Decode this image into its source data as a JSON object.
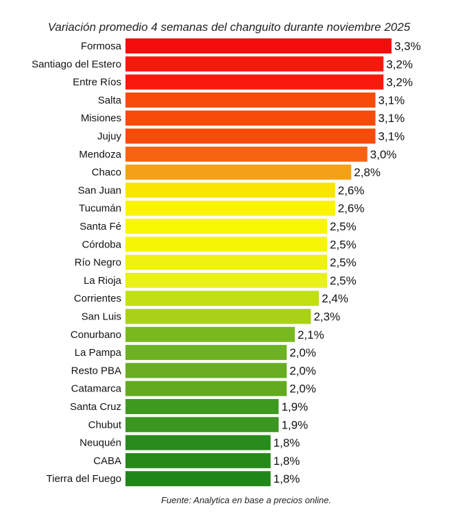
{
  "chart_data": {
    "type": "bar",
    "orientation": "horizontal",
    "title": "Variación promedio 4 semanas del changuito durante noviembre 2025",
    "source": "Fuente: Analytica en base a precios online.",
    "categories": [
      "Formosa",
      "Santiago del Estero",
      "Entre Ríos",
      "Salta",
      "Misiones",
      "Jujuy",
      "Mendoza",
      "Chaco",
      "San Juan",
      "Tucumán",
      "Santa Fé",
      "Córdoba",
      "Río Negro",
      "La Rioja",
      "Corrientes",
      "San Luis",
      "Conurbano",
      "La Pampa",
      "Resto PBA",
      "Catamarca",
      "Santa Cruz",
      "Chubut",
      "Neuquén",
      "CABA",
      "Tierra del Fuego"
    ],
    "values": [
      3.3,
      3.2,
      3.2,
      3.1,
      3.1,
      3.1,
      3.0,
      2.8,
      2.6,
      2.6,
      2.5,
      2.5,
      2.5,
      2.5,
      2.4,
      2.3,
      2.1,
      2.0,
      2.0,
      2.0,
      1.9,
      1.9,
      1.8,
      1.8,
      1.8
    ],
    "value_labels": [
      "3,3%",
      "3,2%",
      "3,2%",
      "3,1%",
      "3,1%",
      "3,1%",
      "3,0%",
      "2,8%",
      "2,6%",
      "2,6%",
      "2,5%",
      "2,5%",
      "2,5%",
      "2,5%",
      "2,4%",
      "2,3%",
      "2,1%",
      "2,0%",
      "2,0%",
      "2,0%",
      "1,9%",
      "1,9%",
      "1,8%",
      "1,8%",
      "1,8%"
    ],
    "colors": [
      "#f40c0c",
      "#f71a0c",
      "#f71a0c",
      "#f74b0a",
      "#f74b0a",
      "#f74b0a",
      "#f66412",
      "#f4a118",
      "#f8e502",
      "#fbf304",
      "#f7f702",
      "#f6f506",
      "#eef20e",
      "#e9f01a",
      "#c1e012",
      "#a9d118",
      "#78b91e",
      "#6cb223",
      "#68ae20",
      "#62aa20",
      "#3e9a1f",
      "#3a961e",
      "#288c1c",
      "#258a1a",
      "#1f8618"
    ],
    "xlim": [
      0,
      3.3
    ],
    "grid": false,
    "legend": "none"
  }
}
